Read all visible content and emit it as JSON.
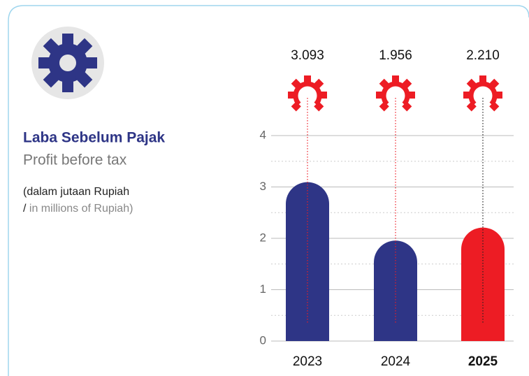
{
  "chart_data": {
    "type": "bar",
    "title": "Laba Sebelum Pajak",
    "subtitle": "Profit before tax",
    "note": [
      "(dalam jutaan Rupiah",
      "/",
      "in millions of Rupiah)"
    ],
    "categories": [
      "2023",
      "2024",
      "2025"
    ],
    "values": [
      3.093,
      1.956,
      2.21
    ],
    "value_labels": [
      "3.093",
      "1.956",
      "2.210"
    ],
    "colors": [
      "#2e3586",
      "#2e3586",
      "#ed1c24"
    ],
    "highlight_index": 2,
    "ylim": [
      0,
      4
    ],
    "yticks": [
      0,
      1,
      2,
      3,
      4
    ],
    "grid": true
  }
}
